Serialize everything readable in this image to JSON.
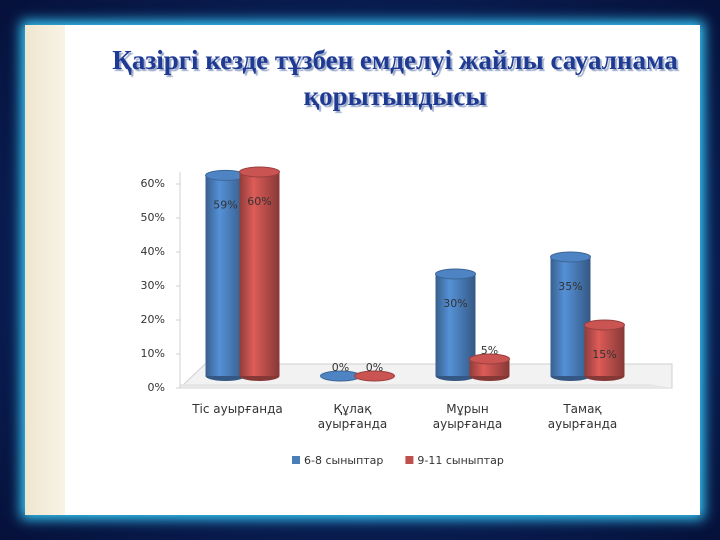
{
  "chart_data": {
    "type": "bar3d",
    "title": "Қазіргі кезде тұзбен емделуі жайлы сауалнама қорытындысы",
    "categories": [
      "Тіс ауырғанда",
      "Құлақ ауырғанда",
      "Мұрын ауырғанда",
      "Тамақ ауырғанда"
    ],
    "series": [
      {
        "name": "6-8 сыныптар",
        "color": "#4a7ebb",
        "values": [
          59,
          0,
          30,
          35
        ],
        "value_labels": [
          "59%",
          "0%",
          "30%",
          "35%"
        ]
      },
      {
        "name": "9-11 сыныптар",
        "color": "#c0504d",
        "values": [
          60,
          0,
          5,
          15
        ],
        "value_labels": [
          "60%",
          "0%",
          "5%",
          "15%"
        ]
      }
    ],
    "ylim": [
      0,
      60
    ],
    "yticks": [
      {
        "value": 0,
        "label": "0%"
      },
      {
        "value": 10,
        "label": "10%"
      },
      {
        "value": 20,
        "label": "20%"
      },
      {
        "value": 30,
        "label": "30%"
      },
      {
        "value": 40,
        "label": "40%"
      },
      {
        "value": 50,
        "label": "50%"
      },
      {
        "value": 60,
        "label": "60%"
      }
    ],
    "grid": false,
    "legend": "bottom"
  }
}
